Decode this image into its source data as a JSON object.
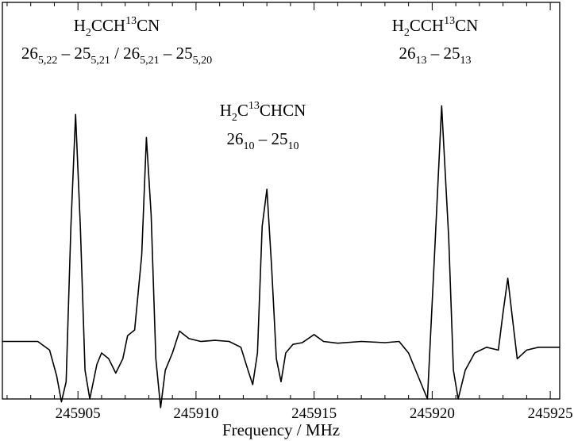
{
  "chart_data": {
    "type": "line",
    "xlabel": "Frequency / MHz",
    "ylabel": "",
    "xlim": [
      245901.8,
      245925.4
    ],
    "ylim": [
      -1.0,
      5.9
    ],
    "grid": false,
    "x_ticks": [
      245905,
      245910,
      245915,
      245920,
      245925
    ],
    "tick_labels": [
      "245905",
      "245910",
      "245915",
      "245920",
      "245925"
    ],
    "series": [
      {
        "values": [
          [
            245901.8,
            0.0
          ],
          [
            245902.6,
            0.0
          ],
          [
            245903.3,
            0.0
          ],
          [
            245903.8,
            -0.15
          ],
          [
            245904.1,
            -0.6
          ],
          [
            245904.3,
            -1.05
          ],
          [
            245904.5,
            -0.7
          ],
          [
            245904.7,
            2.0
          ],
          [
            245904.9,
            3.95
          ],
          [
            245905.1,
            2.0
          ],
          [
            245905.3,
            -0.5
          ],
          [
            245905.5,
            -1.0
          ],
          [
            245905.8,
            -0.4
          ],
          [
            245906.0,
            -0.2
          ],
          [
            245906.3,
            -0.3
          ],
          [
            245906.6,
            -0.55
          ],
          [
            245906.9,
            -0.3
          ],
          [
            245907.1,
            0.1
          ],
          [
            245907.4,
            0.2
          ],
          [
            245907.7,
            1.5
          ],
          [
            245907.9,
            3.55
          ],
          [
            245908.1,
            2.2
          ],
          [
            245908.3,
            -0.3
          ],
          [
            245908.5,
            -1.15
          ],
          [
            245908.7,
            -0.5
          ],
          [
            245909.0,
            -0.2
          ],
          [
            245909.3,
            0.18
          ],
          [
            245909.7,
            0.05
          ],
          [
            245910.2,
            0.0
          ],
          [
            245910.8,
            0.02
          ],
          [
            245911.4,
            0.0
          ],
          [
            245911.9,
            -0.1
          ],
          [
            245912.2,
            -0.5
          ],
          [
            245912.4,
            -0.75
          ],
          [
            245912.6,
            -0.2
          ],
          [
            245912.8,
            2.0
          ],
          [
            245913.0,
            2.65
          ],
          [
            245913.2,
            1.3
          ],
          [
            245913.4,
            -0.3
          ],
          [
            245913.6,
            -0.7
          ],
          [
            245913.8,
            -0.2
          ],
          [
            245914.1,
            -0.05
          ],
          [
            245914.5,
            -0.02
          ],
          [
            245915.0,
            0.12
          ],
          [
            245915.4,
            0.0
          ],
          [
            245916.0,
            -0.03
          ],
          [
            245917.0,
            0.0
          ],
          [
            245918.0,
            -0.02
          ],
          [
            245918.6,
            0.0
          ],
          [
            245919.0,
            -0.2
          ],
          [
            245919.4,
            -0.6
          ],
          [
            245919.8,
            -1.0
          ],
          [
            245920.1,
            1.5
          ],
          [
            245920.4,
            4.1
          ],
          [
            245920.7,
            1.8
          ],
          [
            245920.9,
            -0.5
          ],
          [
            245921.1,
            -1.0
          ],
          [
            245921.4,
            -0.5
          ],
          [
            245921.8,
            -0.2
          ],
          [
            245922.3,
            -0.1
          ],
          [
            245922.8,
            -0.15
          ],
          [
            245923.0,
            0.5
          ],
          [
            245923.2,
            1.1
          ],
          [
            245923.4,
            0.4
          ],
          [
            245923.6,
            -0.3
          ],
          [
            245924.0,
            -0.15
          ],
          [
            245924.5,
            -0.1
          ],
          [
            245925.4,
            -0.1
          ]
        ]
      }
    ],
    "annotations": [
      {
        "id": "a1",
        "line1": [
          {
            "t": "H"
          },
          {
            "t": "2",
            "s": "sub"
          },
          {
            "t": "CCH"
          },
          {
            "t": "13",
            "s": "sup"
          },
          {
            "t": "CN"
          }
        ],
        "line2": [
          {
            "t": "26"
          },
          {
            "t": "5,22",
            "s": "sub"
          },
          {
            "t": " – 25"
          },
          {
            "t": "5,21",
            "s": "sub"
          },
          {
            "t": " / 26"
          },
          {
            "t": "5,21",
            "s": "sub"
          },
          {
            "t": " – 25"
          },
          {
            "t": "5,20",
            "s": "sub"
          }
        ]
      },
      {
        "id": "a2",
        "line1": [
          {
            "t": "H"
          },
          {
            "t": "2",
            "s": "sub"
          },
          {
            "t": "C"
          },
          {
            "t": "13",
            "s": "sup"
          },
          {
            "t": "CHCN"
          }
        ],
        "line2": [
          {
            "t": "26"
          },
          {
            "t": "10",
            "s": "sub"
          },
          {
            "t": " – 25"
          },
          {
            "t": "10",
            "s": "sub"
          }
        ]
      },
      {
        "id": "a3",
        "line1": [
          {
            "t": "H"
          },
          {
            "t": "2",
            "s": "sub"
          },
          {
            "t": "CCH"
          },
          {
            "t": "13",
            "s": "sup"
          },
          {
            "t": "CN"
          }
        ],
        "line2": [
          {
            "t": "26"
          },
          {
            "t": "13",
            "s": "sub"
          },
          {
            "t": " – 25"
          },
          {
            "t": "13",
            "s": "sub"
          }
        ]
      }
    ]
  }
}
